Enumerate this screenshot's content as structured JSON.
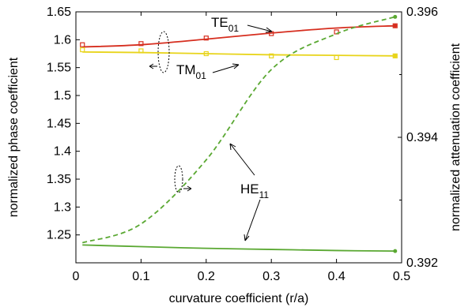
{
  "chart_data": {
    "type": "line",
    "title": "",
    "xlabel": "curvature coefficient (r/a)",
    "ylabel_left": "normalized phase coefficient",
    "ylabel_right": "normalized attenuation coefficient",
    "xlim": [
      0,
      0.5
    ],
    "ylim_left": [
      1.2,
      1.65
    ],
    "ylim_right": [
      0.392,
      0.396
    ],
    "x_ticks": [
      "0",
      "0.1",
      "0.2",
      "0.3",
      "0.4",
      "0.5"
    ],
    "y_left_ticks": [
      "1.25",
      "1.3",
      "1.35",
      "1.4",
      "1.45",
      "1.5",
      "1.55",
      "1.6",
      "1.65"
    ],
    "y_right_ticks": [
      "0.392",
      "0.394",
      "0.396"
    ],
    "grid": false,
    "series": [
      {
        "name": "TE01",
        "axis": "left",
        "color": "#d62e1f",
        "style": "solid",
        "x": [
          0.01,
          0.1,
          0.2,
          0.3,
          0.4,
          0.49
        ],
        "values": [
          1.587,
          1.591,
          1.601,
          1.612,
          1.621,
          1.625
        ]
      },
      {
        "name": "TE01 markers",
        "axis": "left",
        "color": "#d62e1f",
        "style": "marker",
        "x": [
          0.01,
          0.1,
          0.2,
          0.3,
          0.4,
          0.49
        ],
        "values": [
          1.591,
          1.593,
          1.603,
          1.611,
          1.614,
          1.625
        ]
      },
      {
        "name": "TM01",
        "axis": "left",
        "color": "#e8d41a",
        "style": "solid",
        "x": [
          0.01,
          0.1,
          0.2,
          0.3,
          0.4,
          0.49
        ],
        "values": [
          1.578,
          1.577,
          1.575,
          1.573,
          1.572,
          1.571
        ]
      },
      {
        "name": "TM01 markers",
        "axis": "left",
        "color": "#e8d41a",
        "style": "marker",
        "x": [
          0.01,
          0.1,
          0.2,
          0.3,
          0.4,
          0.49
        ],
        "values": [
          1.582,
          1.58,
          1.575,
          1.571,
          1.568,
          1.571
        ]
      },
      {
        "name": "HE11 phase",
        "axis": "left",
        "color": "#5aa832",
        "style": "solid",
        "x": [
          0.01,
          0.1,
          0.2,
          0.3,
          0.4,
          0.49
        ],
        "values": [
          1.232,
          1.229,
          1.226,
          1.224,
          1.222,
          1.221
        ]
      },
      {
        "name": "HE11 attenuation",
        "axis": "right",
        "color": "#5aa832",
        "style": "dashed",
        "x": [
          0.01,
          0.1,
          0.2,
          0.3,
          0.4,
          0.49
        ],
        "values": [
          0.39232,
          0.39262,
          0.39364,
          0.39508,
          0.39565,
          0.39592
        ]
      }
    ],
    "annotations": {
      "te01": {
        "main": "TE",
        "sub": "01"
      },
      "tm01": {
        "main": "TM",
        "sub": "01"
      },
      "he11": {
        "main": "HE",
        "sub": "11"
      }
    }
  }
}
